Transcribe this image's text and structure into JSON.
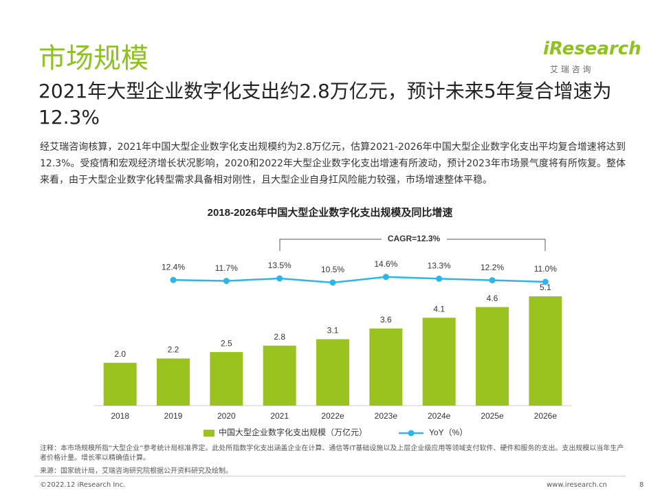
{
  "header": {
    "title": "市场规模",
    "subtitle": "2021年大型企业数字化支出约2.8万亿元，预计未来5年复合增速为12.3%",
    "logo": "iResearch",
    "logo_sub": "艾 瑞 咨 询"
  },
  "body": "经艾瑞咨询核算，2021年中国大型企业数字化支出规模约为2.8万亿元，估算2021-2026年中国大型企业数字化支出平均复合增速将达到12.3%。受疫情和宏观经济增长状况影响，2020和2022年大型企业数字化支出增速有所波动，预计2023年市场景气度将有所恢复。整体来看，由于大型企业数字化转型需求具备相对刚性，且大型企业自身扛风险能力较强，市场增速整体平稳。",
  "chart_data": {
    "type": "bar",
    "title": "2018-2026年中国大型企业数字化支出规模及同比增速",
    "annotation": "CAGR=12.3%",
    "categories": [
      "2018",
      "2019",
      "2020",
      "2021",
      "2022e",
      "2023e",
      "2024e",
      "2025e",
      "2026e"
    ],
    "ylim": [
      0,
      6
    ],
    "y2lim": [
      0,
      30
    ],
    "series": [
      {
        "name": "中国大型企业数字化支出规模（万亿元）",
        "type": "bar",
        "color": "#9bc31f",
        "values": [
          2.0,
          2.2,
          2.5,
          2.8,
          3.1,
          3.6,
          4.1,
          4.6,
          5.1
        ],
        "value_labels": [
          "2.0",
          "2.2",
          "2.5",
          "2.8",
          "3.1",
          "3.6",
          "4.1",
          "4.6",
          "5.1"
        ]
      },
      {
        "name": "YoY（%）",
        "type": "line",
        "axis": "y2",
        "color": "#2cb5e8",
        "values": [
          null,
          12.4,
          11.7,
          13.5,
          10.5,
          14.6,
          13.3,
          12.2,
          11.0
        ],
        "value_labels": [
          null,
          "12.4%",
          "11.7%",
          "13.5%",
          "10.5%",
          "14.6%",
          "13.3%",
          "12.2%",
          "11.0%"
        ]
      }
    ]
  },
  "notes": [
    "注释：本市场规模所指“大型企业”参考统计局标准界定。此处所指数字化支出涵盖企业在计算、通信等IT基础设施以及上层企业级应用等领域支付软件、硬件和服务的支出。支出规模以当年生产者价格计量。增长率以精确值计算。",
    "来源：国家统计局，艾瑞咨询研究院根据公开资料研究及绘制。"
  ],
  "footer": {
    "copyright": "©2022.12 iResearch Inc.",
    "url": "www.iresearch.cn",
    "page": "8"
  }
}
